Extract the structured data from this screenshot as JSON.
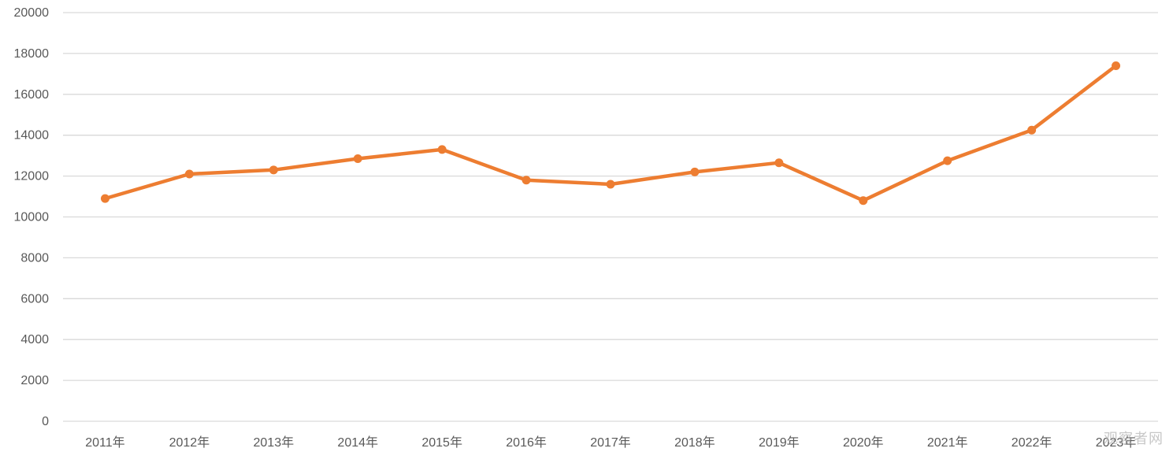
{
  "watermark_text": "观察者网",
  "colors": {
    "line": "#ED7D31",
    "grid": "#D9D9D9",
    "tick_text": "#595959"
  },
  "chart_data": {
    "type": "line",
    "title": "",
    "xlabel": "",
    "ylabel": "",
    "categories": [
      "2011年",
      "2012年",
      "2013年",
      "2014年",
      "2015年",
      "2016年",
      "2017年",
      "2018年",
      "2019年",
      "2020年",
      "2021年",
      "2022年",
      "2023年"
    ],
    "y_ticks": [
      "0",
      "2000",
      "4000",
      "6000",
      "8000",
      "10000",
      "12000",
      "14000",
      "16000",
      "18000",
      "20000"
    ],
    "ylim": [
      0,
      20000
    ],
    "grid": true,
    "legend": "none",
    "series": [
      {
        "values": [
          10900,
          12100,
          12300,
          12850,
          13300,
          11800,
          11600,
          12200,
          12650,
          10800,
          12750,
          14250,
          17400
        ]
      }
    ]
  }
}
